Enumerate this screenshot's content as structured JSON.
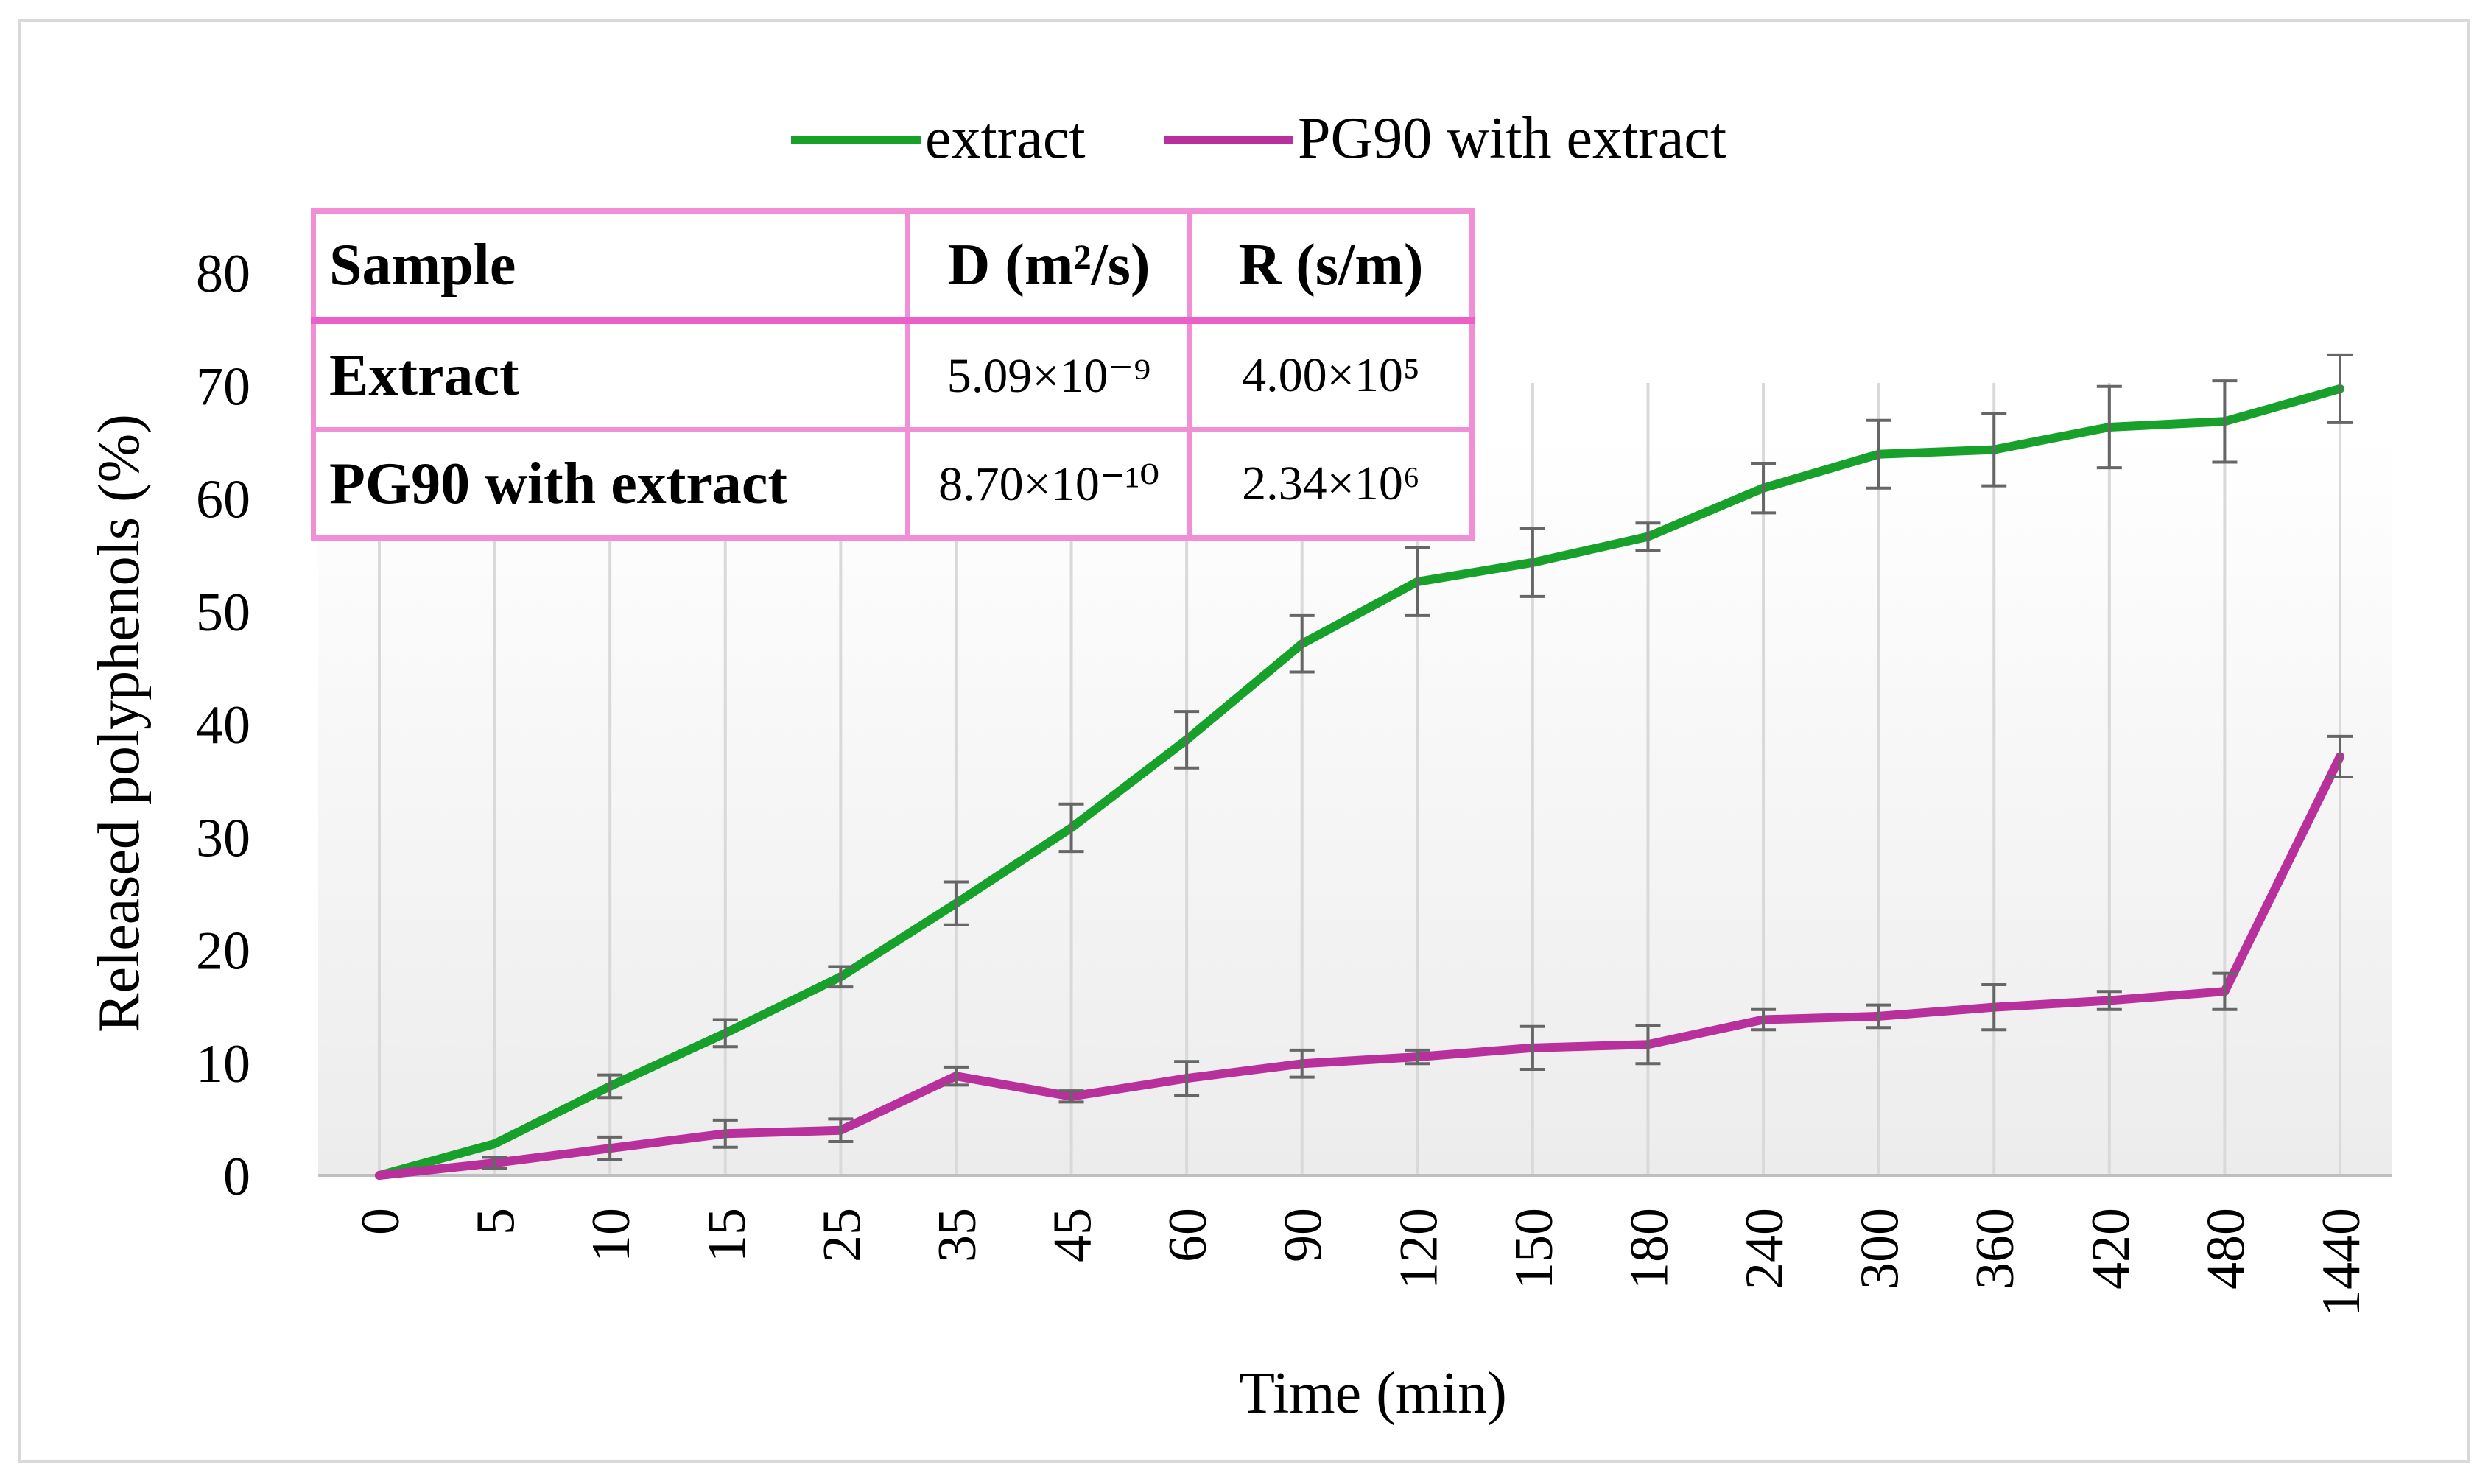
{
  "chart_data": {
    "type": "line",
    "xlabel": "Time (min)",
    "ylabel": "Released polyphenols (%)",
    "ylim": [
      0,
      80
    ],
    "yticks": [
      0,
      10,
      20,
      30,
      40,
      50,
      60,
      70,
      80
    ],
    "categories": [
      "0",
      "5",
      "10",
      "15",
      "25",
      "35",
      "45",
      "60",
      "90",
      "120",
      "150",
      "180",
      "240",
      "300",
      "360",
      "420",
      "480",
      "1440"
    ],
    "legend_position": "top-center",
    "grid": "vertical",
    "series": [
      {
        "name": "extract",
        "color": "#17a02a",
        "values": [
          0,
          2.8,
          7.9,
          12.6,
          17.6,
          24.1,
          30.8,
          38.6,
          47.1,
          52.6,
          54.3,
          56.6,
          60.9,
          63.9,
          64.3,
          66.3,
          66.8,
          69.7
        ],
        "errors": [
          0,
          0,
          1.0,
          1.2,
          0.9,
          1.9,
          2.1,
          2.5,
          2.5,
          3.0,
          3.0,
          1.2,
          2.2,
          3.0,
          3.2,
          3.6,
          3.6,
          3.0
        ]
      },
      {
        "name": "PG90 with extract",
        "color": "#b8309c",
        "values": [
          0,
          1.1,
          2.4,
          3.7,
          4.0,
          8.8,
          7.0,
          8.6,
          9.9,
          10.5,
          11.3,
          11.6,
          13.8,
          14.1,
          14.9,
          15.5,
          16.3,
          37.1
        ],
        "errors": [
          0,
          0.5,
          1.0,
          1.2,
          1.0,
          0.8,
          0.5,
          1.5,
          1.2,
          0.6,
          1.9,
          1.7,
          0.9,
          1.0,
          2.0,
          0.8,
          1.6,
          1.8
        ]
      }
    ]
  },
  "table": {
    "headers": [
      "Sample",
      "D (m²/s)",
      "R (s/m)"
    ],
    "rows": [
      {
        "sample": "Extract",
        "d": "5.09×10⁻⁹",
        "r": "4.00×10⁵"
      },
      {
        "sample": "PG90 with extract",
        "d": "8.70×10⁻¹⁰",
        "r": "2.34×10⁶"
      }
    ]
  }
}
